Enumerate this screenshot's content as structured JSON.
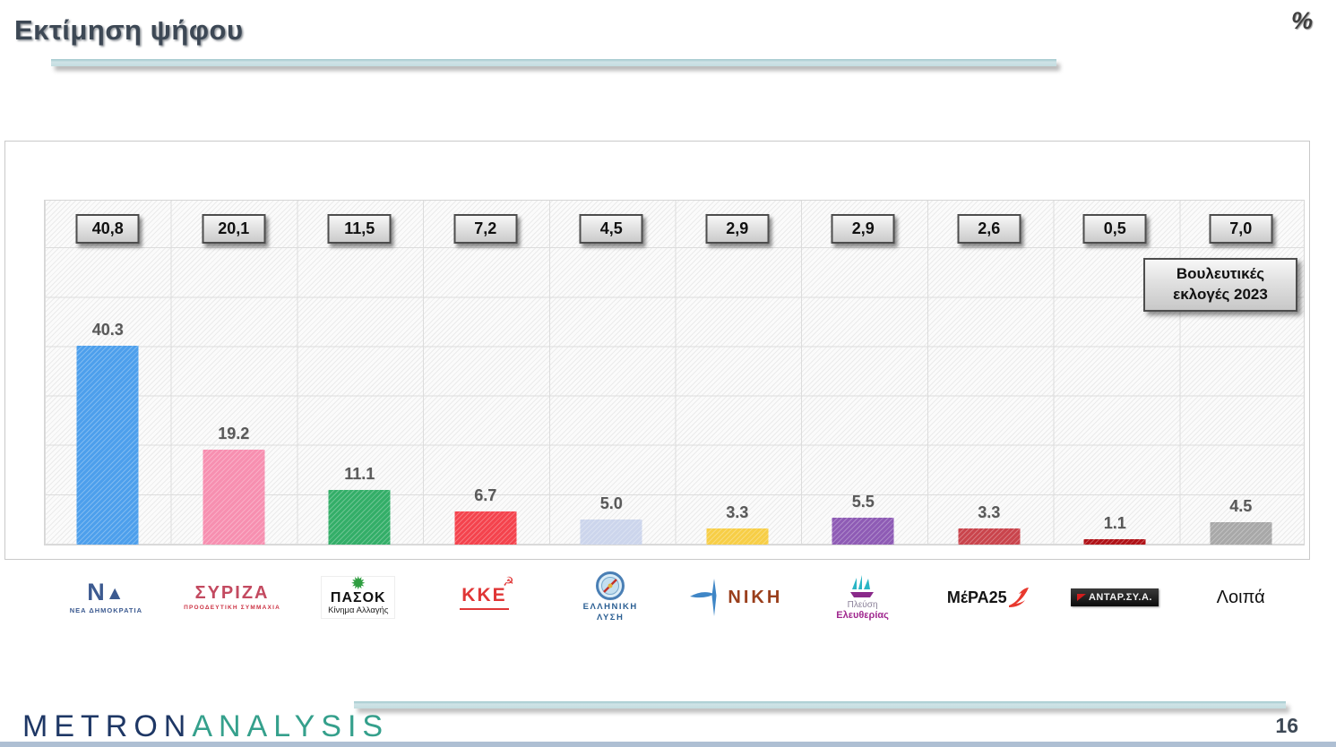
{
  "page": {
    "title": "Εκτίμηση ψήφου",
    "unit_label": "%",
    "page_number": "16",
    "footer_brand_part1": "METRON",
    "footer_brand_part2": "ANALYSIS"
  },
  "colors": {
    "accent_rule_teal": "#c3dde0",
    "brand_navy": "#1e3765",
    "brand_teal": "#35a08c",
    "bar_label_gray": "#595959"
  },
  "chart_data": {
    "type": "bar",
    "title": "Εκτίμηση ψήφου",
    "unit": "%",
    "ylim": [
      0,
      70
    ],
    "grid_step": 10,
    "grid": true,
    "legend_lines": [
      "Βουλευτικές",
      "εκλογές 2023"
    ],
    "categories": [
      "ΝΕΑ ΔΗΜΟΚΡΑΤΙΑ",
      "ΣΥΡΙΖΑ",
      "ΠΑΣΟΚ",
      "ΚΚΕ",
      "ΕΛΛΗΝΙΚΗ ΛΥΣΗ",
      "ΝΙΚΗ",
      "ΠΛΕΥΣΗ ΕΛΕΥΘΕΡΙΑΣ",
      "ΜέΡΑ25",
      "ΑΝΤΑΡΣΥΑ",
      "Λοιπά"
    ],
    "series": [
      {
        "name": "Εκτίμηση ψήφου",
        "values": [
          40.3,
          19.2,
          11.1,
          6.7,
          5.0,
          3.3,
          5.5,
          3.3,
          1.1,
          4.5
        ],
        "labels": [
          "40.3",
          "19.2",
          "11.1",
          "6.7",
          "5.0",
          "3.3",
          "5.5",
          "3.3",
          "1.1",
          "4.5"
        ]
      },
      {
        "name": "Βουλευτικές εκλογές 2023",
        "values": [
          40.8,
          20.1,
          11.5,
          7.2,
          4.5,
          2.9,
          2.9,
          2.6,
          0.5,
          7.0
        ],
        "labels": [
          "40,8",
          "20,1",
          "11,5",
          "7,2",
          "4,5",
          "2,9",
          "2,9",
          "2,6",
          "0,5",
          "7,0"
        ]
      }
    ],
    "bar_colors": [
      "#4d9fec",
      "#f78fb0",
      "#33ae68",
      "#f4434d",
      "#ccd5ec",
      "#f7ce46",
      "#8e5bb5",
      "#c9444c",
      "#b01217",
      "#a8a8a8"
    ]
  },
  "logos": [
    {
      "main": "Ν",
      "tri": "▲",
      "sub": "ΝΕΑ ΔΗΜΟΚΡΑΤΙΑ"
    },
    {
      "main": "ΣΥΡΙΖΑ",
      "sub": "ΠΡΟΟΔΕΥΤΙΚΗ ΣΥΜΜΑΧΙΑ"
    },
    {
      "sun": "✹",
      "main": "ΠΑΣΟΚ",
      "sub": "Κίνημα Αλλαγής"
    },
    {
      "emblem": "☭",
      "main": "ΚΚΕ"
    },
    {
      "sub1": "ΕΛΛΗΝΙΚΗ",
      "sub2": "ΛΥΣΗ"
    },
    {
      "main": "ΝΙΚΗ"
    },
    {
      "line1": "Πλεύση",
      "line2": "Ελευθερίας"
    },
    {
      "main": "ΜέΡΑ25"
    },
    {
      "main": "ΑΝΤΑΡ.ΣΥ.Α."
    },
    {
      "main": "Λοιπά"
    }
  ]
}
